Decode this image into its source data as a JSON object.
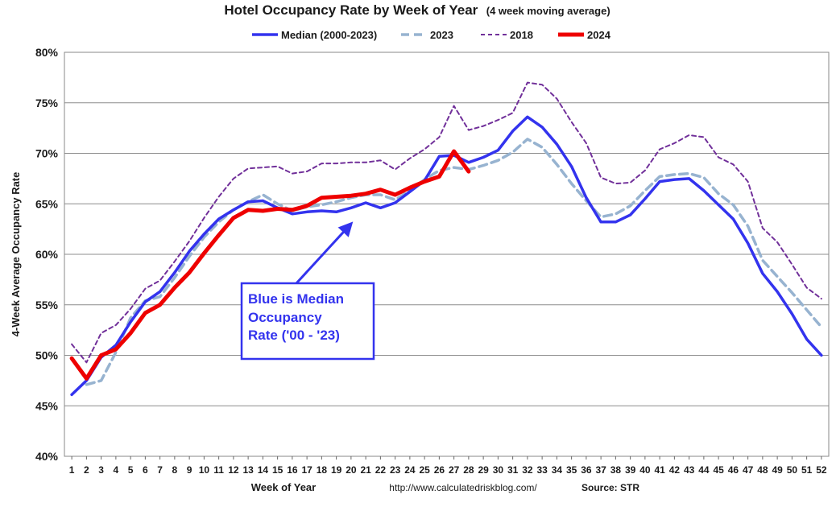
{
  "chart_data": {
    "type": "line",
    "title": "Hotel Occupancy Rate by  Week of Year",
    "subtitle": "(4 week moving average)",
    "xlabel": "Week of Year",
    "ylabel": "4-Week Average Occupancy Rate",
    "ylim": [
      40,
      80
    ],
    "yticks": [
      "40%",
      "45%",
      "50%",
      "55%",
      "60%",
      "65%",
      "70%",
      "75%",
      "80%"
    ],
    "grid": true,
    "legend_position": "top",
    "x": [
      "1",
      "2",
      "3",
      "4",
      "5",
      "6",
      "7",
      "8",
      "9",
      "10",
      "11",
      "12",
      "13",
      "14",
      "15",
      "16",
      "17",
      "18",
      "19",
      "20",
      "21",
      "22",
      "23",
      "24",
      "25",
      "26",
      "27",
      "28",
      "29",
      "30",
      "31",
      "32",
      "33",
      "34",
      "35",
      "36",
      "37",
      "38",
      "39",
      "40",
      "41",
      "42",
      "43",
      "44",
      "45",
      "46",
      "47",
      "48",
      "49",
      "50",
      "51",
      "52"
    ],
    "series": [
      {
        "name": "Median (2000-2023)",
        "color": "#3333ee",
        "style": "solid",
        "values": [
          46.1,
          47.5,
          49.8,
          51.0,
          53.3,
          55.3,
          56.3,
          58.2,
          60.3,
          62.0,
          63.5,
          64.4,
          65.2,
          65.3,
          64.6,
          64.0,
          64.2,
          64.3,
          64.2,
          64.6,
          65.1,
          64.6,
          65.1,
          66.2,
          67.3,
          69.7,
          69.8,
          69.1,
          69.6,
          70.3,
          72.2,
          73.6,
          72.6,
          70.9,
          68.7,
          65.6,
          63.2,
          63.2,
          63.9,
          65.5,
          67.2,
          67.4,
          67.5,
          66.3,
          64.9,
          63.5,
          61.1,
          58.1,
          56.3,
          54.1,
          51.6,
          50.0
        ]
      },
      {
        "name": "2023",
        "color": "#97b3d0",
        "style": "dashed",
        "values": [
          null,
          47.1,
          47.5,
          50.3,
          53.7,
          55.4,
          55.8,
          57.7,
          59.8,
          61.7,
          63.2,
          64.4,
          65.2,
          65.9,
          65.0,
          64.3,
          64.7,
          64.9,
          65.2,
          65.6,
          65.9,
          65.9,
          65.4,
          66.3,
          67.4,
          68.3,
          68.6,
          68.4,
          68.8,
          69.3,
          70.1,
          71.4,
          70.6,
          68.9,
          67.0,
          65.3,
          63.7,
          64.0,
          64.8,
          66.3,
          67.7,
          67.9,
          68.0,
          67.6,
          66.0,
          64.9,
          62.8,
          59.4,
          57.8,
          56.2,
          54.5,
          52.8
        ]
      },
      {
        "name": "2018",
        "color": "#71309a",
        "style": "dotted",
        "values": [
          51.1,
          49.3,
          52.2,
          53.0,
          54.6,
          56.6,
          57.4,
          59.3,
          61.3,
          63.6,
          65.7,
          67.5,
          68.5,
          68.6,
          68.7,
          68.0,
          68.2,
          69.0,
          69.0,
          69.1,
          69.1,
          69.3,
          68.4,
          69.5,
          70.4,
          71.6,
          74.7,
          72.3,
          72.7,
          73.3,
          74.0,
          77.0,
          76.8,
          75.4,
          73.1,
          71.0,
          67.6,
          67.0,
          67.1,
          68.3,
          70.4,
          71.0,
          71.8,
          71.6,
          69.6,
          68.9,
          67.2,
          62.6,
          61.2,
          59.0,
          56.7,
          55.6
        ]
      },
      {
        "name": "2024",
        "color": "#ee0000",
        "style": "solid",
        "values": [
          49.7,
          47.7,
          50.0,
          50.6,
          52.2,
          54.2,
          55.0,
          56.7,
          58.2,
          60.1,
          61.9,
          63.6,
          64.4,
          64.3,
          64.5,
          64.4,
          64.8,
          65.6,
          65.7,
          65.8,
          66.0,
          66.4,
          65.9,
          66.6,
          67.2,
          67.7,
          70.2,
          68.2,
          null,
          null,
          null,
          null,
          null,
          null,
          null,
          null,
          null,
          null,
          null,
          null,
          null,
          null,
          null,
          null,
          null,
          null,
          null,
          null,
          null,
          null,
          null,
          null
        ]
      }
    ],
    "annotation": {
      "lines": [
        "Blue is Median",
        "Occupancy",
        "Rate ('00 - '23)"
      ],
      "color": "#3333ee",
      "arrow_to": {
        "x": "20",
        "y": 63.5
      }
    },
    "footer": {
      "url": "http://www.calculatedriskblog.com/",
      "source": "Source: STR"
    }
  }
}
